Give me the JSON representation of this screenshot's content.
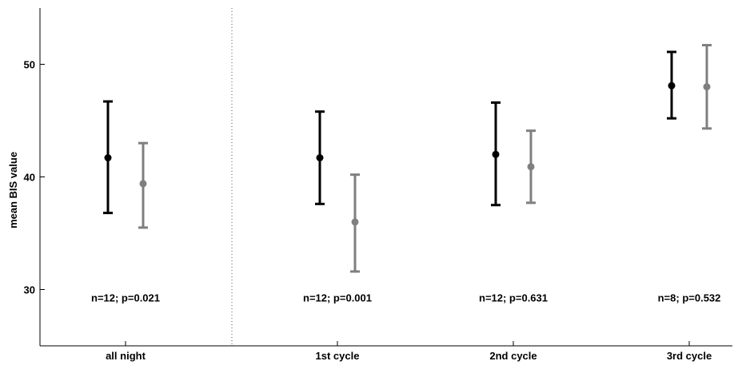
{
  "chart_data": {
    "type": "errorbar",
    "categories": [
      "all night",
      "1st cycle",
      "2nd cycle",
      "3rd cycle"
    ],
    "ylabel": "mean BIS value",
    "xlabel": "",
    "ylim": [
      25,
      55
    ],
    "yticks": [
      30,
      40,
      50
    ],
    "grid": false,
    "legend": "none",
    "series": [
      {
        "color": "#000000",
        "mean": [
          41.7,
          41.7,
          42.0,
          48.1
        ],
        "lower": [
          36.8,
          37.6,
          37.5,
          45.2
        ],
        "upper": [
          46.7,
          45.8,
          46.6,
          51.1
        ]
      },
      {
        "color": "#7f7f7f",
        "mean": [
          39.4,
          36.0,
          40.9,
          48.0
        ],
        "lower": [
          35.5,
          31.6,
          37.7,
          44.3
        ],
        "upper": [
          43.0,
          40.2,
          44.1,
          51.7
        ]
      }
    ],
    "annotations": [
      "n=12; p=0.021",
      "n=12; p=0.001",
      "n=12; p=0.631",
      "n=8; p=0.532"
    ],
    "separator_after_category": "all night"
  }
}
